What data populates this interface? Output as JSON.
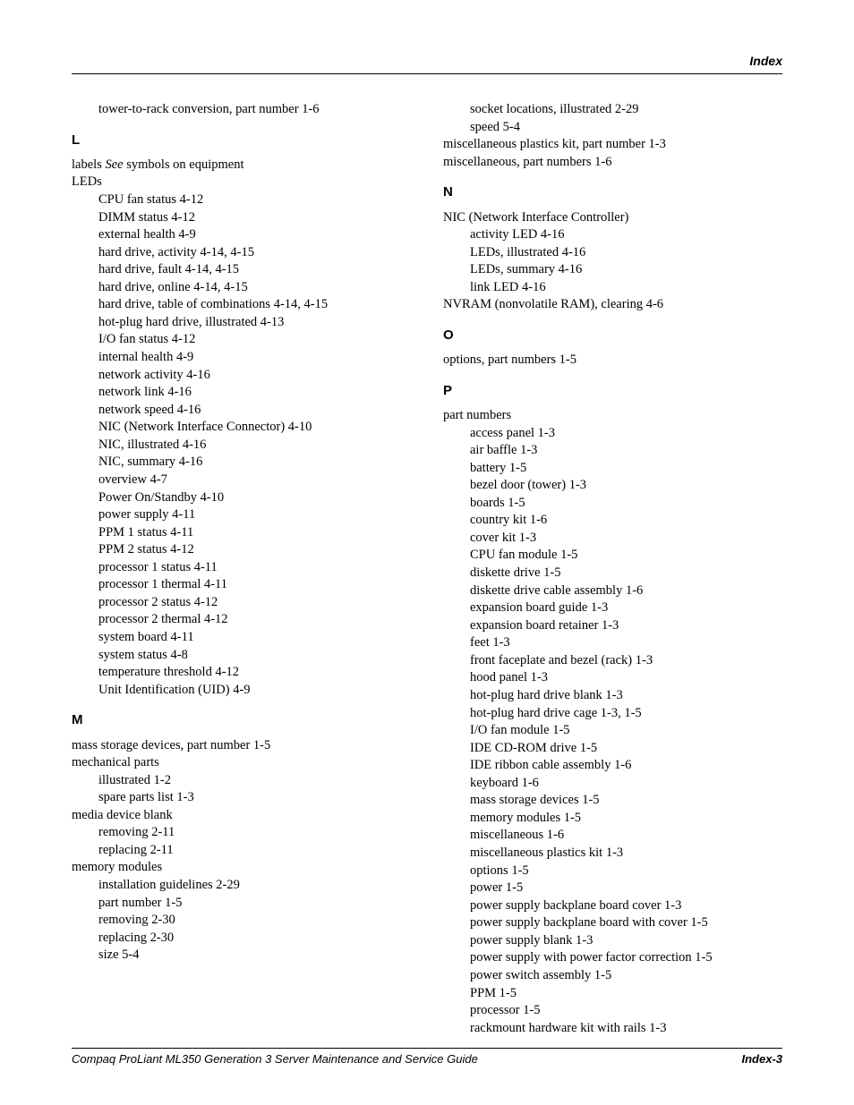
{
  "header": "Index",
  "footer": {
    "title": "Compaq ProLiant ML350 Generation 3 Server Maintenance and Service Guide",
    "page": "Index-3"
  },
  "left": {
    "pre": [
      "tower-to-rack conversion, part number   1-6"
    ],
    "L": {
      "letter": "L",
      "lines": [
        {
          "t": "labels   ",
          "i": "See",
          "r": " symbols on equipment"
        },
        {
          "t": "LEDs"
        },
        {
          "s": "CPU fan status   4-12"
        },
        {
          "s": "DIMM status   4-12"
        },
        {
          "s": "external health   4-9"
        },
        {
          "s": "hard drive, activity   4-14, 4-15"
        },
        {
          "s": "hard drive, fault   4-14, 4-15"
        },
        {
          "s": "hard drive, online   4-14, 4-15"
        },
        {
          "s": "hard drive, table of combinations   4-14, 4-15"
        },
        {
          "s": "hot-plug hard drive, illustrated   4-13"
        },
        {
          "s": "I/O fan status   4-12"
        },
        {
          "s": "internal health   4-9"
        },
        {
          "s": "network activity   4-16"
        },
        {
          "s": "network link   4-16"
        },
        {
          "s": "network speed   4-16"
        },
        {
          "s": "NIC (Network Interface Connector)   4-10"
        },
        {
          "s": "NIC, illustrated   4-16"
        },
        {
          "s": "NIC, summary   4-16"
        },
        {
          "s": "overview   4-7"
        },
        {
          "s": "Power On/Standby   4-10"
        },
        {
          "s": "power supply   4-11"
        },
        {
          "s": "PPM 1 status   4-11"
        },
        {
          "s": "PPM 2 status   4-12"
        },
        {
          "s": "processor 1 status   4-11"
        },
        {
          "s": "processor 1 thermal   4-11"
        },
        {
          "s": "processor 2 status   4-12"
        },
        {
          "s": "processor 2 thermal   4-12"
        },
        {
          "s": "system board   4-11"
        },
        {
          "s": "system status   4-8"
        },
        {
          "s": "temperature threshold   4-12"
        },
        {
          "s": "Unit Identification (UID)   4-9"
        }
      ]
    },
    "M": {
      "letter": "M",
      "lines": [
        {
          "t": "mass storage devices, part number   1-5"
        },
        {
          "t": "mechanical parts"
        },
        {
          "s": "illustrated   1-2"
        },
        {
          "s": "spare parts list   1-3"
        },
        {
          "t": "media device blank"
        },
        {
          "s": "removing   2-11"
        },
        {
          "s": "replacing   2-11"
        },
        {
          "t": "memory modules"
        },
        {
          "s": "installation guidelines   2-29"
        },
        {
          "s": "part number   1-5"
        },
        {
          "s": "removing   2-30"
        },
        {
          "s": "replacing   2-30"
        },
        {
          "s": "size   5-4"
        }
      ]
    }
  },
  "right": {
    "pre": [
      {
        "s": "socket locations, illustrated   2-29"
      },
      {
        "s": "speed   5-4"
      },
      {
        "t": "miscellaneous plastics kit, part number   1-3"
      },
      {
        "t": "miscellaneous, part numbers   1-6"
      }
    ],
    "N": {
      "letter": "N",
      "lines": [
        {
          "t": "NIC (Network Interface Controller)"
        },
        {
          "s": "activity LED   4-16"
        },
        {
          "s": "LEDs, illustrated   4-16"
        },
        {
          "s": "LEDs, summary   4-16"
        },
        {
          "s": "link LED   4-16"
        },
        {
          "t": "NVRAM (nonvolatile RAM), clearing   4-6"
        }
      ]
    },
    "O": {
      "letter": "O",
      "lines": [
        {
          "t": "options, part numbers   1-5"
        }
      ]
    },
    "P": {
      "letter": "P",
      "lines": [
        {
          "t": "part numbers"
        },
        {
          "s": "access panel   1-3"
        },
        {
          "s": "air baffle   1-3"
        },
        {
          "s": "battery   1-5"
        },
        {
          "s": "bezel door (tower)   1-3"
        },
        {
          "s": "boards   1-5"
        },
        {
          "s": "country kit   1-6"
        },
        {
          "s": "cover kit   1-3"
        },
        {
          "s": "CPU fan module   1-5"
        },
        {
          "s": "diskette drive   1-5"
        },
        {
          "s": "diskette drive cable assembly   1-6"
        },
        {
          "s": "expansion board guide   1-3"
        },
        {
          "s": "expansion board retainer   1-3"
        },
        {
          "s": "feet   1-3"
        },
        {
          "s": "front faceplate and bezel (rack)   1-3"
        },
        {
          "s": "hood panel   1-3"
        },
        {
          "s": "hot-plug hard drive blank   1-3"
        },
        {
          "s": "hot-plug hard drive cage   1-3, 1-5"
        },
        {
          "s": "I/O fan module   1-5"
        },
        {
          "s": "IDE CD-ROM drive   1-5"
        },
        {
          "s": "IDE ribbon cable assembly   1-6"
        },
        {
          "s": "keyboard   1-6"
        },
        {
          "s": "mass storage devices   1-5"
        },
        {
          "s": "memory modules   1-5"
        },
        {
          "s": "miscellaneous   1-6"
        },
        {
          "s": "miscellaneous plastics kit   1-3"
        },
        {
          "s": "options   1-5"
        },
        {
          "s": "power   1-5"
        },
        {
          "s": "power supply backplane board cover   1-3"
        },
        {
          "s": "power supply backplane board with cover   1-5"
        },
        {
          "s": "power supply blank   1-3"
        },
        {
          "s": "power supply with power factor correction   1-5"
        },
        {
          "s": "power switch assembly   1-5"
        },
        {
          "s": "PPM   1-5"
        },
        {
          "s": "processor   1-5"
        },
        {
          "s": "rackmount hardware kit with rails   1-3"
        }
      ]
    }
  }
}
